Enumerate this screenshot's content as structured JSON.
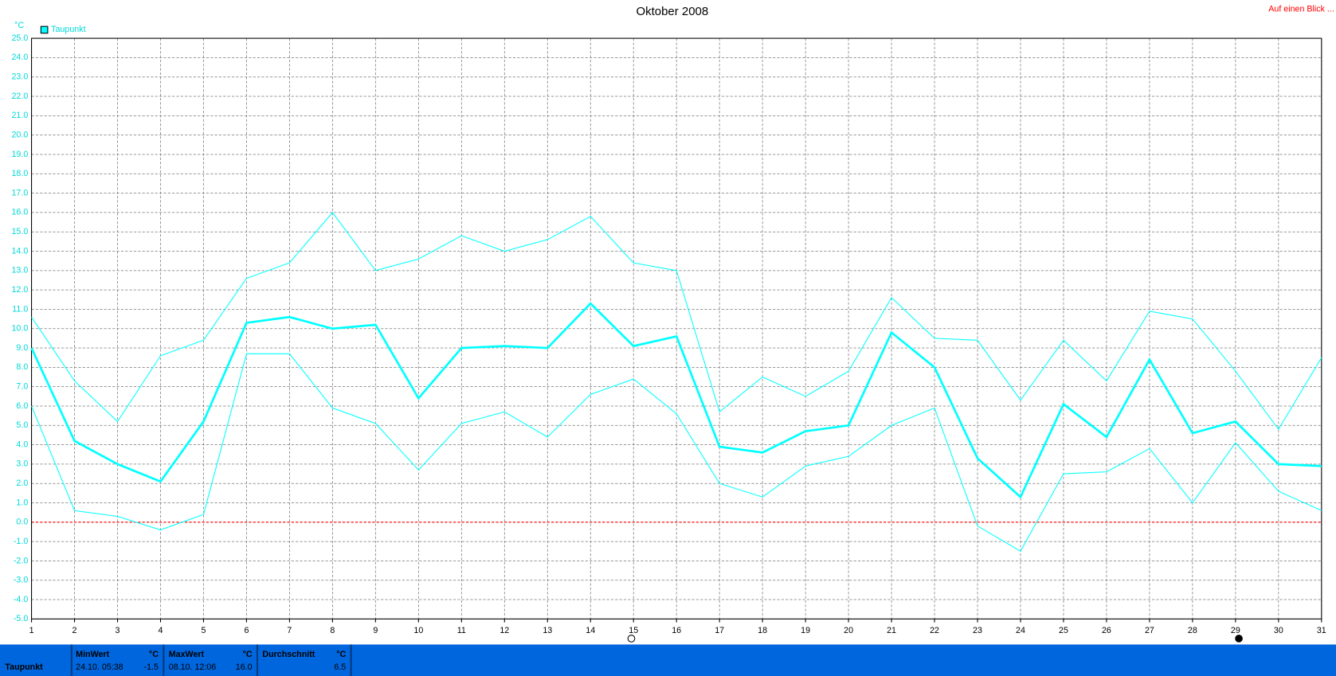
{
  "chart_data": {
    "type": "line",
    "title": "Oktober 2008",
    "y_unit": "°C",
    "corner_link": "Auf einen Blick ...",
    "legend": "Taupunkt",
    "legend_color": "#00ffff",
    "zero_line_color": "#ff0000",
    "grid": true,
    "categories": [
      "1",
      "2",
      "3",
      "4",
      "5",
      "6",
      "7",
      "8",
      "9",
      "10",
      "11",
      "12",
      "13",
      "14",
      "15",
      "16",
      "17",
      "18",
      "19",
      "20",
      "21",
      "22",
      "23",
      "24",
      "25",
      "26",
      "27",
      "28",
      "29",
      "30",
      "31"
    ],
    "series": [
      {
        "color": "#00ffff",
        "width": 2.5,
        "values": [
          9.0,
          4.2,
          3.0,
          2.1,
          5.2,
          10.3,
          10.6,
          10.0,
          10.2,
          6.4,
          9.0,
          9.1,
          9.0,
          11.3,
          9.1,
          9.6,
          3.9,
          3.6,
          4.7,
          5.0,
          9.8,
          8.0,
          3.3,
          1.3,
          6.1,
          4.4,
          8.4,
          4.6,
          5.2,
          3.0,
          2.9
        ]
      },
      {
        "color": "#00ffff",
        "width": 1,
        "values": [
          10.6,
          7.3,
          5.2,
          8.6,
          9.4,
          12.6,
          13.4,
          16.0,
          13.0,
          13.6,
          14.8,
          14.0,
          14.6,
          15.8,
          13.4,
          13.0,
          5.7,
          7.5,
          6.5,
          7.8,
          11.6,
          9.5,
          9.4,
          6.3,
          9.4,
          7.3,
          10.9,
          10.5,
          7.8,
          4.8,
          8.5
        ]
      },
      {
        "color": "#00ffff",
        "width": 1,
        "values": [
          6.0,
          0.6,
          0.3,
          -0.4,
          0.4,
          8.7,
          8.7,
          5.9,
          5.1,
          2.7,
          5.1,
          5.7,
          4.4,
          6.6,
          7.4,
          5.6,
          2.0,
          1.3,
          2.9,
          3.4,
          5.0,
          5.9,
          -0.2,
          -1.5,
          2.5,
          2.6,
          3.8,
          1.0,
          4.1,
          1.6,
          0.6
        ]
      }
    ],
    "ylim": [
      -5,
      25
    ],
    "yticks": [
      {
        "value": -5,
        "label": "-5.0"
      },
      {
        "value": -4,
        "label": "-4.0"
      },
      {
        "value": -3,
        "label": "-3.0"
      },
      {
        "value": -2,
        "label": "-2.0"
      },
      {
        "value": -1,
        "label": "-1.0"
      },
      {
        "value": 0,
        "label": "0.0"
      },
      {
        "value": 1,
        "label": "1.0"
      },
      {
        "value": 2,
        "label": "2.0"
      },
      {
        "value": 3,
        "label": "3.0"
      },
      {
        "value": 4,
        "label": "4.0"
      },
      {
        "value": 5,
        "label": "5.0"
      },
      {
        "value": 6,
        "label": "6.0"
      },
      {
        "value": 7,
        "label": "7.0"
      },
      {
        "value": 8,
        "label": "8.0"
      },
      {
        "value": 9,
        "label": "9.0"
      },
      {
        "value": 10,
        "label": "10.0"
      },
      {
        "value": 11,
        "label": "11.0"
      },
      {
        "value": 12,
        "label": "12.0"
      },
      {
        "value": 13,
        "label": "13.0"
      },
      {
        "value": 14,
        "label": "14.0"
      },
      {
        "value": 15,
        "label": "15.0"
      },
      {
        "value": 16,
        "label": "16.0"
      },
      {
        "value": 17,
        "label": "17.0"
      },
      {
        "value": 18,
        "label": "18.0"
      },
      {
        "value": 19,
        "label": "19.0"
      },
      {
        "value": 20,
        "label": "20.0"
      },
      {
        "value": 21,
        "label": "21.0"
      },
      {
        "value": 22,
        "label": "22.0"
      },
      {
        "value": 23,
        "label": "23.0"
      },
      {
        "value": 24,
        "label": "24.0"
      },
      {
        "value": 25,
        "label": "25.0"
      }
    ]
  },
  "stats": {
    "name": "Taupunkt",
    "min": {
      "title": "MinWert",
      "unit": "°C",
      "time": "24.10.  05:38",
      "value": "-1.5"
    },
    "max": {
      "title": "MaxWert",
      "unit": "°C",
      "time": "08.10.  12:06",
      "value": "16.0"
    },
    "avg": {
      "title": "Durchschnitt",
      "unit": "°C",
      "value": "6.5"
    }
  }
}
